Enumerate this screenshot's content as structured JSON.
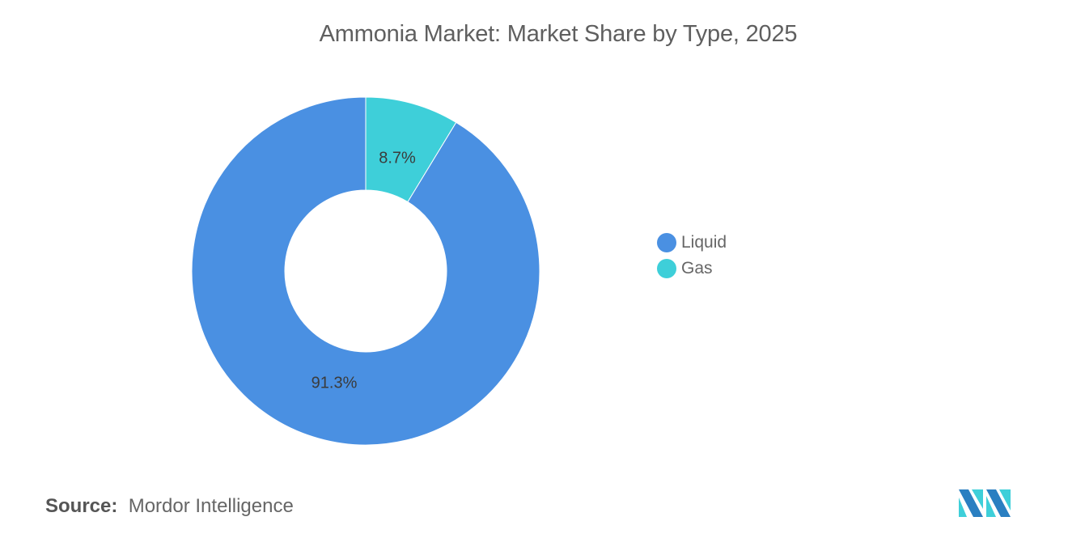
{
  "chart_data": {
    "type": "pie",
    "variant": "donut",
    "title": "Ammonia Market: Market Share by Type, 2025",
    "categories": [
      "Liquid",
      "Gas"
    ],
    "values": [
      91.3,
      8.7
    ],
    "labels": [
      "91.3%",
      "8.7%"
    ],
    "colors": [
      "#4a90e2",
      "#3ecfd9"
    ],
    "legend_position": "right",
    "start_angle_deg": 0,
    "direction": "clockwise"
  },
  "header": {
    "title": "Ammonia Market: Market Share by Type, 2025"
  },
  "legend": {
    "items": [
      {
        "label": "Liquid",
        "color": "#4a90e2"
      },
      {
        "label": "Gas",
        "color": "#3ecfd9"
      }
    ]
  },
  "footer": {
    "source_label": "Source:",
    "source_value": "Mordor Intelligence",
    "logo": "mordor-intelligence-logo"
  }
}
